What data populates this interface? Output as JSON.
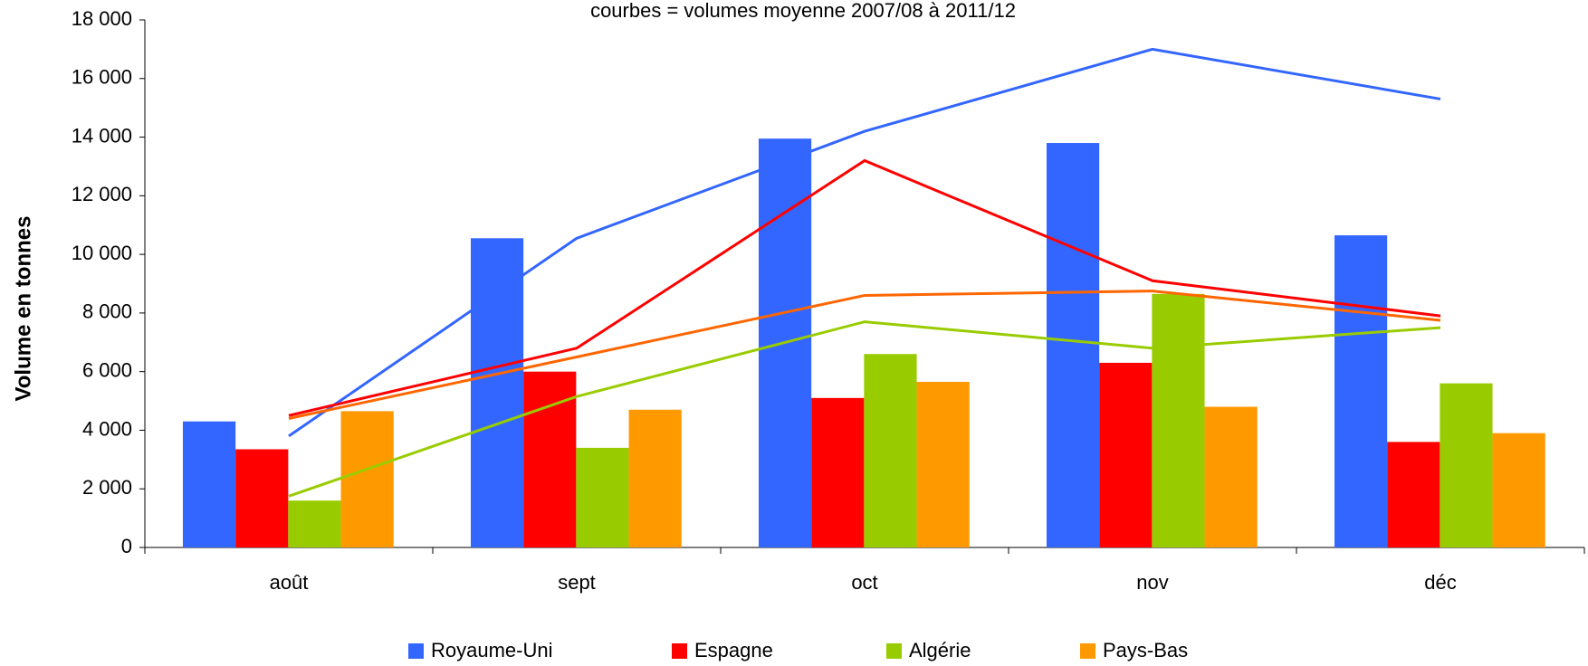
{
  "chart_data": {
    "type": "bar",
    "title": "courbes = volumes moyenne 2007/08 à 2011/12",
    "y_label": "Volume en tonnes",
    "categories": [
      "août",
      "sept",
      "oct",
      "nov",
      "déc"
    ],
    "series": [
      {
        "name": "Royaume-Uni",
        "color": "#3366ff",
        "values": [
          4300,
          10550,
          13950,
          13800,
          10650
        ]
      },
      {
        "name": "Espagne",
        "color": "#ff0000",
        "values": [
          3350,
          6000,
          5100,
          6300,
          3600
        ]
      },
      {
        "name": "Algérie",
        "color": "#99cc00",
        "values": [
          1600,
          3400,
          6600,
          8650,
          5600
        ]
      },
      {
        "name": "Pays-Bas",
        "color": "#ff9900",
        "values": [
          4650,
          4700,
          5650,
          4800,
          3900
        ]
      }
    ],
    "lines": [
      {
        "color": "#3366ff",
        "values": [
          3800,
          10550,
          14200,
          17000,
          15300
        ]
      },
      {
        "color": "#ff0000",
        "values": [
          4500,
          6800,
          13200,
          9100,
          7900
        ]
      },
      {
        "color": "#99cc00",
        "values": [
          1750,
          5150,
          7700,
          6800,
          7500
        ]
      },
      {
        "color": "#ff6600",
        "values": [
          4400,
          6500,
          8600,
          8750,
          7750
        ]
      }
    ],
    "ylim": [
      0,
      18000
    ],
    "yticks": [
      0,
      {
        "value": 2000,
        "label": "2 000"
      },
      {
        "value": 4000,
        "label": "4 000"
      },
      {
        "value": 6000,
        "label": "6 000"
      },
      {
        "value": 8000,
        "label": "8 000"
      },
      {
        "value": 10000,
        "label": "10 000"
      },
      {
        "value": 12000,
        "label": "12 000"
      },
      {
        "value": 14000,
        "label": "14 000"
      },
      {
        "value": 16000,
        "label": "16 000"
      },
      {
        "value": 18000,
        "label": "18 000"
      }
    ],
    "grid": false
  }
}
